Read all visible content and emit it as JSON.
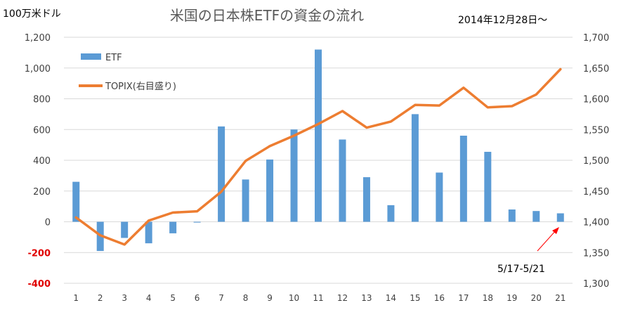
{
  "chart_data": {
    "type": "bar+line",
    "title": "米国の日本株ETFの資金の流れ",
    "period_label": "2014年12月28日～",
    "left_axis_unit": "100万米ドル",
    "x": [
      "1",
      "2",
      "3",
      "4",
      "5",
      "6",
      "7",
      "8",
      "9",
      "10",
      "11",
      "12",
      "13",
      "14",
      "15",
      "16",
      "17",
      "18",
      "19",
      "20",
      "21"
    ],
    "left_axis": {
      "ylim": [
        -400,
        1200
      ],
      "ticks": [
        -400,
        -200,
        0,
        200,
        400,
        600,
        800,
        1000,
        1200
      ],
      "tick_labels": [
        "-400",
        "-200",
        "0",
        "200",
        "400",
        "600",
        "800",
        "1,000",
        "1,200"
      ]
    },
    "right_axis": {
      "ylim": [
        1300,
        1700
      ],
      "ticks": [
        1300,
        1350,
        1400,
        1450,
        1500,
        1550,
        1600,
        1650,
        1700
      ],
      "tick_labels": [
        "1,300",
        "1,350",
        "1,400",
        "1,450",
        "1,500",
        "1,550",
        "1,600",
        "1,650",
        "1,700"
      ]
    },
    "series": [
      {
        "name": "ETF",
        "type": "bar",
        "axis": "left",
        "color": "#5b9bd5",
        "values": [
          260,
          -190,
          -105,
          -140,
          -75,
          -5,
          620,
          275,
          405,
          600,
          1120,
          535,
          290,
          108,
          700,
          320,
          560,
          455,
          80,
          70,
          55
        ]
      },
      {
        "name": "TOPIX(右目盛り)",
        "type": "line",
        "axis": "right",
        "color": "#ed7d31",
        "values": [
          1407,
          1378,
          1363,
          1402,
          1415,
          1417,
          1449,
          1499,
          1523,
          1540,
          1559,
          1580,
          1553,
          1563,
          1590,
          1589,
          1618,
          1586,
          1588,
          1607,
          1648
        ]
      }
    ],
    "annotation": {
      "text": "5/17-5/21",
      "color": "#ff0000"
    },
    "grid": true,
    "legend_position": "top-left"
  }
}
